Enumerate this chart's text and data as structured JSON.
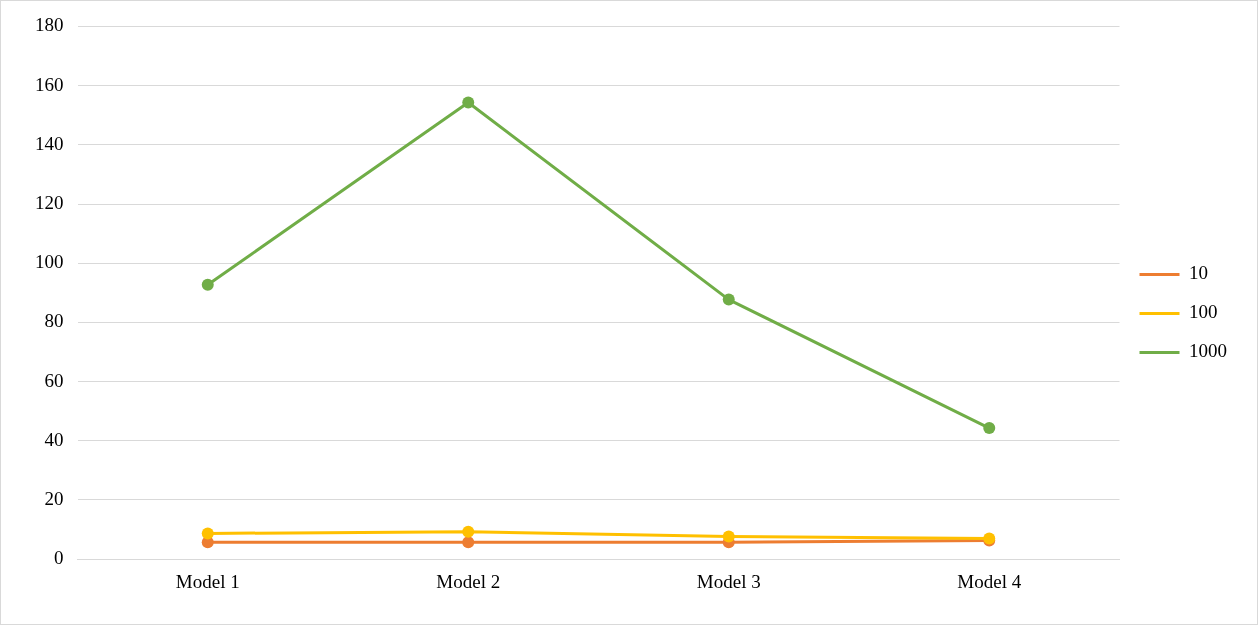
{
  "chart_data": {
    "type": "line",
    "categories": [
      "Model 1",
      "Model 2",
      "Model 3",
      "Model 4"
    ],
    "series": [
      {
        "name": "10",
        "color": "#ed7d31",
        "values": [
          5.7,
          5.7,
          5.7,
          6.3
        ]
      },
      {
        "name": "100",
        "color": "#ffc000",
        "values": [
          8.7,
          9.3,
          7.7,
          7.0
        ]
      },
      {
        "name": "1000",
        "color": "#70ad47",
        "values": [
          92.7,
          154.3,
          87.7,
          44.3
        ]
      }
    ],
    "ylim": [
      0,
      180
    ],
    "yticks": [
      0,
      20,
      40,
      60,
      80,
      100,
      120,
      140,
      160,
      180
    ],
    "grid": "y",
    "legend": "right",
    "marker": "circle",
    "line_style": "solid"
  }
}
